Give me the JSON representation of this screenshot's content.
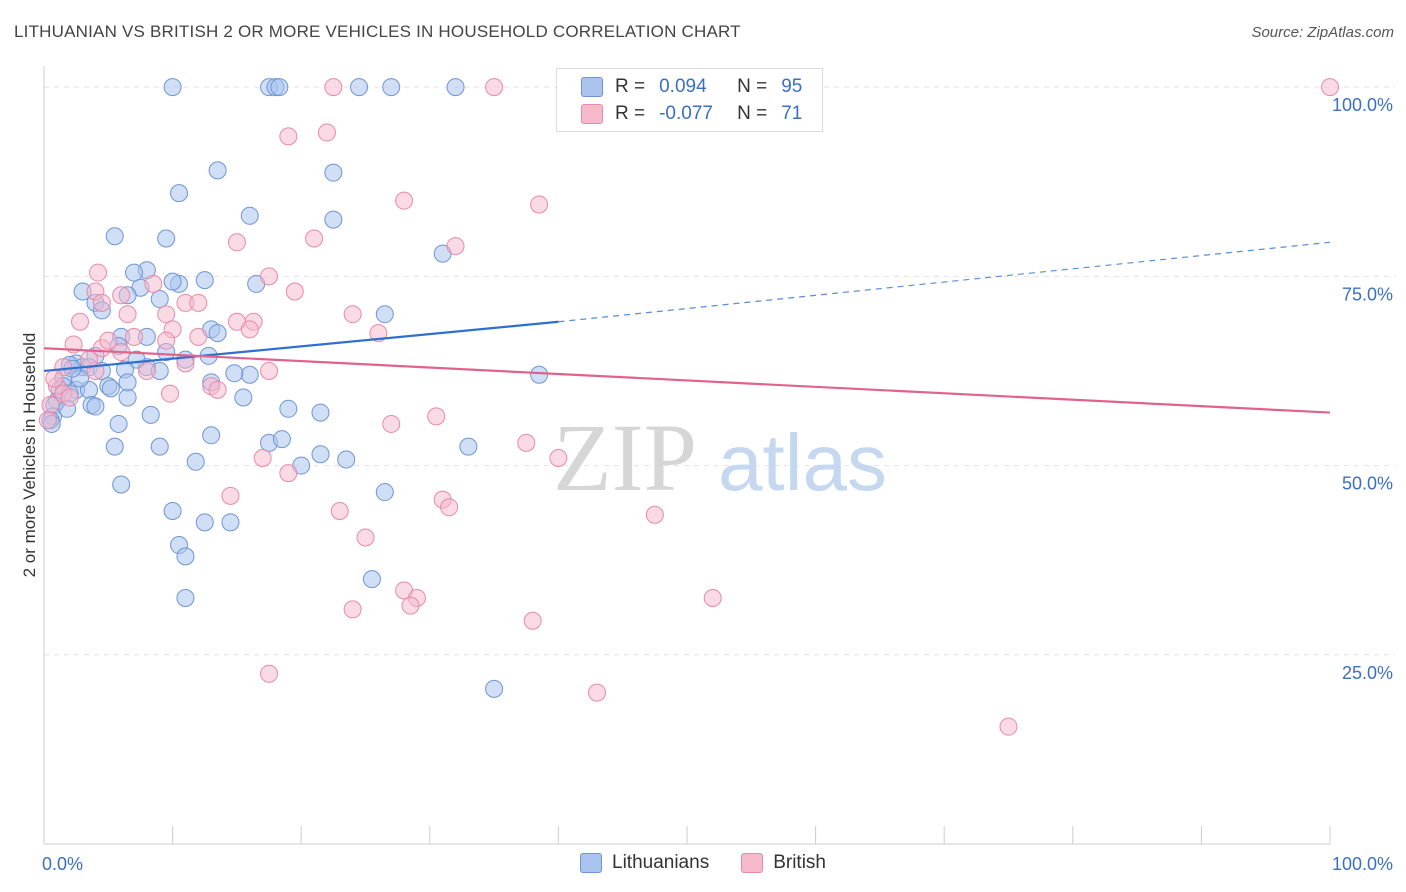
{
  "title": "LITHUANIAN VS BRITISH 2 OR MORE VEHICLES IN HOUSEHOLD CORRELATION CHART",
  "source": "Source: ZipAtlas.com",
  "watermark": {
    "zip": "ZIP",
    "atlas": "atlas"
  },
  "legend": {
    "rows": [
      {
        "r_label": "R =",
        "r_value": "0.094",
        "n_label": "N =",
        "n_value": "95"
      },
      {
        "r_label": "R =",
        "r_value": "-0.077",
        "n_label": "N =",
        "n_value": "71"
      }
    ]
  },
  "bottom_legend": {
    "lithuanians": "Lithuanians",
    "british": "British"
  },
  "colors": {
    "lithuanian_fill": "#aac4ee",
    "lithuanian_stroke": "#6e95d6",
    "lithuanian_line": "#2f6fcf",
    "british_fill": "#f6b8cb",
    "british_stroke": "#e88aa7",
    "british_line": "#e0638d",
    "grid": "#e2e2e2",
    "tick_text": "#3a6fc4"
  },
  "chart_data": {
    "type": "scatter",
    "title": "LITHUANIAN VS BRITISH 2 OR MORE VEHICLES IN HOUSEHOLD CORRELATION CHART",
    "xlabel": "",
    "ylabel": "2 or more Vehicles in Household",
    "xlim": [
      0,
      100
    ],
    "ylim": [
      0,
      102
    ],
    "x_tick_labels": [
      "0.0%",
      "100.0%"
    ],
    "y_ticks": [
      25,
      50,
      75,
      100
    ],
    "y_tick_labels": [
      "25.0%",
      "50.0%",
      "75.0%",
      "100.0%"
    ],
    "grid": true,
    "legend_position": "top-center",
    "series": [
      {
        "name": "Lithuanians",
        "trend": {
          "x": [
            0,
            40
          ],
          "y": [
            62.5,
            69.0
          ],
          "dashed_to": {
            "x": 100,
            "y": 79.5
          }
        },
        "points": [
          [
            10,
            100
          ],
          [
            17.5,
            100
          ],
          [
            18,
            100
          ],
          [
            18.3,
            100
          ],
          [
            24.5,
            100
          ],
          [
            27,
            100
          ],
          [
            32,
            100
          ],
          [
            13.5,
            89
          ],
          [
            22.5,
            88.7
          ],
          [
            10.5,
            86
          ],
          [
            16,
            83
          ],
          [
            22.5,
            82.5
          ],
          [
            5.5,
            80.3
          ],
          [
            9.5,
            80
          ],
          [
            31,
            78
          ],
          [
            8,
            75.8
          ],
          [
            12.5,
            74.5
          ],
          [
            10.5,
            74
          ],
          [
            16.5,
            74
          ],
          [
            7.5,
            73.5
          ],
          [
            9,
            72
          ],
          [
            4,
            71.5
          ],
          [
            6.5,
            72.5
          ],
          [
            4.5,
            70.5
          ],
          [
            26.5,
            70
          ],
          [
            13,
            68
          ],
          [
            6,
            67
          ],
          [
            8,
            67
          ],
          [
            5.8,
            65.8
          ],
          [
            9.5,
            65
          ],
          [
            12.8,
            64.5
          ],
          [
            4,
            64.5
          ],
          [
            2.5,
            63.5
          ],
          [
            3,
            63
          ],
          [
            2,
            63.3
          ],
          [
            3.5,
            63
          ],
          [
            8,
            63
          ],
          [
            4.5,
            62.5
          ],
          [
            9,
            62.5
          ],
          [
            16,
            62
          ],
          [
            38.5,
            62
          ],
          [
            1.5,
            61.5
          ],
          [
            13,
            61
          ],
          [
            1.5,
            60.5
          ],
          [
            1.2,
            60
          ],
          [
            2.5,
            60
          ],
          [
            5,
            60.5
          ],
          [
            3.5,
            60
          ],
          [
            2,
            59.5
          ],
          [
            6.5,
            59
          ],
          [
            15.5,
            59
          ],
          [
            1,
            58.5
          ],
          [
            0.8,
            58
          ],
          [
            3.7,
            58
          ],
          [
            4,
            57.8
          ],
          [
            19,
            57.5
          ],
          [
            21.5,
            57
          ],
          [
            8.3,
            56.7
          ],
          [
            0.7,
            56.5
          ],
          [
            0.5,
            56
          ],
          [
            0.6,
            55.5
          ],
          [
            5.8,
            55.5
          ],
          [
            17.5,
            53
          ],
          [
            18.5,
            53.5
          ],
          [
            13,
            54
          ],
          [
            5.5,
            52.5
          ],
          [
            9,
            52.5
          ],
          [
            21.5,
            51.5
          ],
          [
            11.8,
            50.5
          ],
          [
            23.5,
            50.8
          ],
          [
            20,
            50
          ],
          [
            33,
            52.5
          ],
          [
            6,
            47.5
          ],
          [
            26.5,
            46.5
          ],
          [
            10,
            44
          ],
          [
            12.5,
            42.5
          ],
          [
            14.5,
            42.5
          ],
          [
            10.5,
            39.5
          ],
          [
            11,
            38
          ],
          [
            25.5,
            35
          ],
          [
            11,
            32.5
          ],
          [
            35,
            20.5
          ],
          [
            10,
            74.3
          ],
          [
            3,
            73
          ],
          [
            7,
            75.5
          ],
          [
            13.5,
            67.5
          ],
          [
            7.2,
            64
          ],
          [
            11,
            64
          ],
          [
            6.3,
            62.7
          ],
          [
            14.8,
            62.2
          ],
          [
            6.5,
            61
          ],
          [
            5.2,
            60.2
          ],
          [
            2.8,
            61.5
          ],
          [
            2.2,
            62.8
          ],
          [
            1.8,
            57.5
          ]
        ]
      },
      {
        "name": "British",
        "trend": {
          "x": [
            0,
            100
          ],
          "y": [
            65.5,
            57.0
          ]
        },
        "points": [
          [
            22.5,
            100
          ],
          [
            35,
            100
          ],
          [
            100,
            100
          ],
          [
            19,
            93.5
          ],
          [
            22,
            94
          ],
          [
            28,
            85
          ],
          [
            38.5,
            84.5
          ],
          [
            21,
            80
          ],
          [
            15,
            79.5
          ],
          [
            32,
            79
          ],
          [
            4.2,
            75.5
          ],
          [
            4,
            73
          ],
          [
            8.5,
            74
          ],
          [
            17.5,
            75
          ],
          [
            19.5,
            73
          ],
          [
            6,
            72.5
          ],
          [
            4.5,
            71.5
          ],
          [
            11,
            71.5
          ],
          [
            12,
            71.5
          ],
          [
            9.5,
            70
          ],
          [
            6.5,
            70
          ],
          [
            2.8,
            69
          ],
          [
            24,
            70
          ],
          [
            15,
            69
          ],
          [
            16.3,
            69
          ],
          [
            16,
            68
          ],
          [
            10,
            68
          ],
          [
            12,
            67
          ],
          [
            7,
            67
          ],
          [
            9.5,
            66.5
          ],
          [
            26,
            67.5
          ],
          [
            2.3,
            66
          ],
          [
            4.5,
            65.5
          ],
          [
            17.5,
            62.5
          ],
          [
            8,
            62.5
          ],
          [
            4,
            62.5
          ],
          [
            1,
            60.5
          ],
          [
            1.5,
            59.5
          ],
          [
            2,
            59
          ],
          [
            9.8,
            59.5
          ],
          [
            13,
            60.5
          ],
          [
            13.5,
            60
          ],
          [
            0.5,
            58
          ],
          [
            0.3,
            56
          ],
          [
            30.5,
            56.5
          ],
          [
            27,
            55.5
          ],
          [
            37.5,
            53
          ],
          [
            40,
            51
          ],
          [
            17,
            51
          ],
          [
            19,
            49
          ],
          [
            14.5,
            46
          ],
          [
            31,
            45.5
          ],
          [
            31.5,
            44.5
          ],
          [
            23,
            44
          ],
          [
            47.5,
            43.5
          ],
          [
            25,
            40.5
          ],
          [
            28,
            33.5
          ],
          [
            29,
            32.5
          ],
          [
            28.5,
            31.5
          ],
          [
            24,
            31
          ],
          [
            52,
            32.5
          ],
          [
            38,
            29.5
          ],
          [
            17.5,
            22.5
          ],
          [
            43,
            20
          ],
          [
            75,
            15.5
          ],
          [
            6,
            65
          ],
          [
            11,
            63.5
          ],
          [
            5,
            66.5
          ],
          [
            3.5,
            64
          ],
          [
            1.5,
            63
          ],
          [
            0.8,
            61.5
          ]
        ]
      }
    ]
  }
}
